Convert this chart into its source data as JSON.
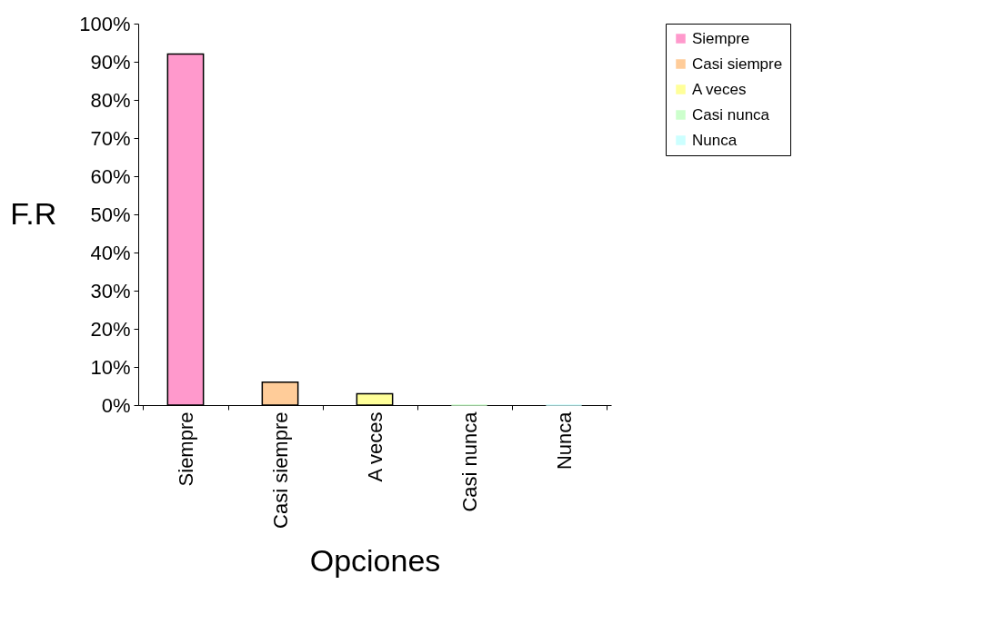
{
  "chart_data": {
    "type": "bar",
    "xlabel": "Opciones",
    "ylabel": "F.R",
    "categories": [
      "Siempre",
      "Casi siempre",
      "A veces",
      "Casi nunca",
      "Nunca"
    ],
    "series": [
      {
        "name": "Siempre",
        "color": "#ff99cc",
        "values": [
          92,
          null,
          null,
          null,
          null
        ]
      },
      {
        "name": "Casi siempre",
        "color": "#ffcc99",
        "values": [
          null,
          6,
          null,
          null,
          null
        ]
      },
      {
        "name": "A veces",
        "color": "#ffff99",
        "values": [
          null,
          null,
          3,
          null,
          null
        ]
      },
      {
        "name": "Casi nunca",
        "color": "#ccffcc",
        "values": [
          null,
          null,
          null,
          0,
          null
        ]
      },
      {
        "name": "Nunca",
        "color": "#ccffff",
        "values": [
          null,
          null,
          null,
          null,
          0
        ]
      }
    ],
    "ylim": [
      0,
      100
    ],
    "yticks": [
      {
        "value": 0,
        "label": "0%"
      },
      {
        "value": 10,
        "label": "10%"
      },
      {
        "value": 20,
        "label": "20%"
      },
      {
        "value": 30,
        "label": "30%"
      },
      {
        "value": 40,
        "label": "40%"
      },
      {
        "value": 50,
        "label": "50%"
      },
      {
        "value": 60,
        "label": "60%"
      },
      {
        "value": 70,
        "label": "70%"
      },
      {
        "value": 80,
        "label": "80%"
      },
      {
        "value": 90,
        "label": "90%"
      },
      {
        "value": 100,
        "label": "100%"
      }
    ],
    "grid": false,
    "legend": "right"
  }
}
